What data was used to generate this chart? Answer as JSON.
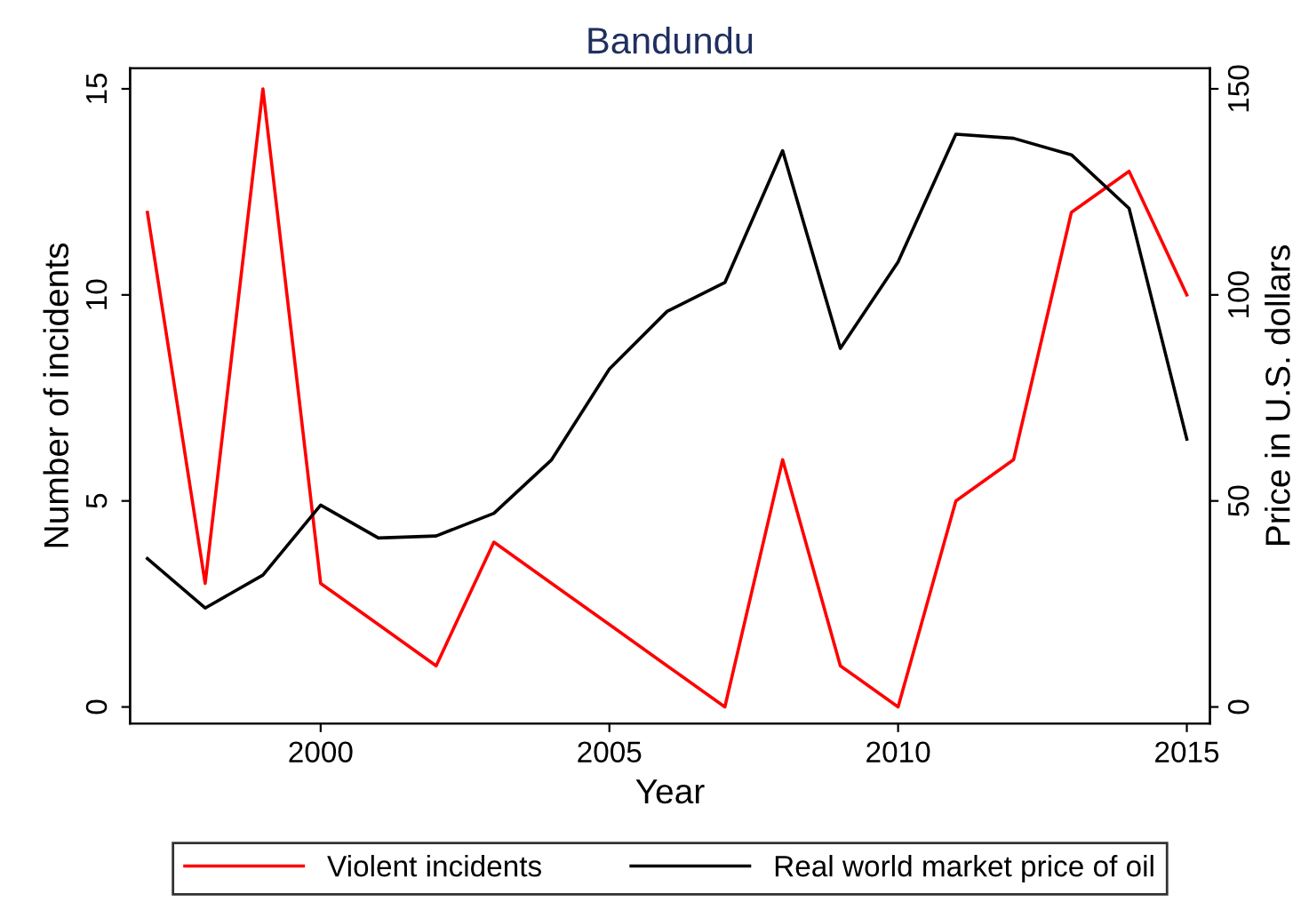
{
  "chart_data": {
    "type": "line",
    "title": "Bandundu",
    "xlabel": "Year",
    "ylabel": "Number of incidents",
    "y2label": "Price in U.S. dollars",
    "x": [
      1997,
      1998,
      1999,
      2000,
      2001,
      2002,
      2003,
      2004,
      2005,
      2006,
      2007,
      2008,
      2009,
      2010,
      2011,
      2012,
      2013,
      2014,
      2015
    ],
    "series": [
      {
        "name": "Violent incidents",
        "color": "#ff0000",
        "values": [
          12,
          3,
          15,
          3,
          2,
          1,
          4,
          3,
          2,
          1,
          0,
          6,
          1,
          0,
          5,
          6,
          12,
          13,
          10
        ]
      },
      {
        "name": "Real world market price of oil",
        "color": "#000000",
        "axis": "y2",
        "values": [
          36,
          24,
          32,
          49,
          41,
          41.5,
          47,
          60,
          82,
          96,
          103,
          135,
          87,
          108,
          139,
          138,
          134,
          121,
          65
        ]
      }
    ],
    "xlim": [
      1996.7,
      2015.4
    ],
    "xticks": [
      2000,
      2005,
      2010,
      2015
    ],
    "ylim": [
      -0.4,
      15.5
    ],
    "yticks": [
      0,
      5,
      10,
      15
    ],
    "y2lim": [
      -4,
      155
    ],
    "y2ticks": [
      0,
      50,
      100,
      150
    ],
    "legend": "bottom",
    "grid": false
  }
}
